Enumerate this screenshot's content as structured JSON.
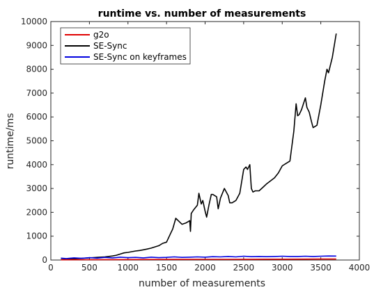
{
  "chart_data": {
    "type": "line",
    "title": "runtime vs. number of measurements",
    "xlabel": "number of measurements",
    "ylabel": "runtime/ms",
    "xlim": [
      0,
      4000
    ],
    "ylim": [
      0,
      10000
    ],
    "xticks": [
      0,
      500,
      1000,
      1500,
      2000,
      2500,
      3000,
      3500,
      4000
    ],
    "yticks": [
      0,
      1000,
      2000,
      3000,
      4000,
      5000,
      6000,
      7000,
      8000,
      9000,
      10000
    ],
    "grid": false,
    "legend_position": "top-left",
    "series": [
      {
        "name": "g2o",
        "color": "#e00000",
        "x": [
          130,
          300,
          500,
          800,
          1000,
          1300,
          1600,
          1800,
          2000,
          2300,
          2600,
          2800,
          3000,
          3300,
          3500,
          3700
        ],
        "y": [
          10,
          12,
          15,
          18,
          20,
          22,
          25,
          25,
          28,
          30,
          32,
          35,
          35,
          38,
          40,
          42
        ]
      },
      {
        "name": "SE-Sync",
        "color": "#000000",
        "x": [
          130,
          200,
          300,
          400,
          500,
          600,
          700,
          800,
          850,
          900,
          950,
          1000,
          1050,
          1100,
          1150,
          1200,
          1250,
          1300,
          1350,
          1400,
          1450,
          1500,
          1550,
          1580,
          1620,
          1700,
          1750,
          1800,
          1810,
          1820,
          1850,
          1900,
          1920,
          1950,
          1970,
          2000,
          2020,
          2050,
          2080,
          2100,
          2150,
          2170,
          2200,
          2250,
          2300,
          2320,
          2350,
          2400,
          2450,
          2500,
          2530,
          2550,
          2580,
          2600,
          2620,
          2650,
          2700,
          2750,
          2800,
          2900,
          2950,
          3000,
          3050,
          3100,
          3150,
          3180,
          3200,
          3220,
          3250,
          3300,
          3320,
          3350,
          3380,
          3400,
          3450,
          3500,
          3550,
          3580,
          3600,
          3650,
          3700
        ],
        "y": [
          20,
          30,
          50,
          70,
          90,
          110,
          130,
          170,
          200,
          250,
          300,
          320,
          350,
          380,
          400,
          430,
          460,
          500,
          550,
          600,
          700,
          750,
          1100,
          1300,
          1750,
          1500,
          1550,
          1650,
          1200,
          1950,
          2100,
          2300,
          2800,
          2350,
          2500,
          2050,
          1800,
          2300,
          2750,
          2750,
          2650,
          2150,
          2600,
          3000,
          2700,
          2400,
          2400,
          2500,
          2800,
          3800,
          3900,
          3800,
          4000,
          3000,
          2850,
          2900,
          2900,
          3050,
          3200,
          3450,
          3650,
          3950,
          4050,
          4150,
          5400,
          6550,
          6050,
          6100,
          6300,
          6800,
          6400,
          6200,
          5800,
          5550,
          5650,
          6500,
          7500,
          8000,
          7850,
          8500,
          9500
        ]
      },
      {
        "name": "SE-Sync on keyframes",
        "color": "#0000e0",
        "x": [
          130,
          200,
          300,
          400,
          500,
          600,
          700,
          800,
          900,
          1000,
          1100,
          1200,
          1300,
          1400,
          1500,
          1600,
          1700,
          1800,
          1900,
          2000,
          2100,
          2200,
          2300,
          2400,
          2500,
          2600,
          2700,
          2800,
          2900,
          3000,
          3100,
          3200,
          3300,
          3400,
          3500,
          3600,
          3700
        ],
        "y": [
          80,
          60,
          90,
          70,
          100,
          80,
          110,
          90,
          120,
          100,
          110,
          90,
          120,
          100,
          110,
          130,
          110,
          120,
          130,
          120,
          140,
          130,
          150,
          130,
          160,
          140,
          150,
          140,
          150,
          160,
          150,
          150,
          160,
          150,
          160,
          170,
          165
        ]
      }
    ]
  }
}
